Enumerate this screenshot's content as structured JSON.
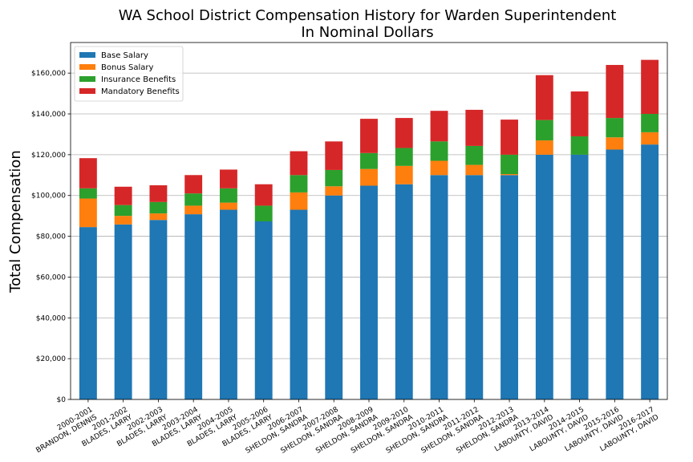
{
  "chart_data": {
    "type": "bar",
    "stacked": true,
    "title": "WA School District Compensation History for Warden Superintendent",
    "subtitle": "In Nominal Dollars",
    "xlabel": "",
    "ylabel": "Total Compensation",
    "ylim": [
      0,
      175000
    ],
    "yticks": [
      "$0",
      "$20,000",
      "$40,000",
      "$60,000",
      "$80,000",
      "$100,000",
      "$120,000",
      "$140,000",
      "$160,000"
    ],
    "ytick_values": [
      0,
      20000,
      40000,
      60000,
      80000,
      100000,
      120000,
      140000,
      160000
    ],
    "grid": true,
    "legend_position": "top-left",
    "categories": [
      [
        "2000-2001",
        "BRANDON, DENNIS"
      ],
      [
        "2001-2002",
        "BLADES, LARRY"
      ],
      [
        "2002-2003",
        "BLADES, LARRY"
      ],
      [
        "2003-2004",
        "BLADES, LARRY"
      ],
      [
        "2004-2005",
        "BLADES, LARRY"
      ],
      [
        "2005-2006",
        "BLADES, LARRY"
      ],
      [
        "2006-2007",
        "SHELDON, SANDRA"
      ],
      [
        "2007-2008",
        "SHELDON, SANDRA"
      ],
      [
        "2008-2009",
        "SHELDON, SANDRA"
      ],
      [
        "2009-2010",
        "SHELDON, SANDRA"
      ],
      [
        "2010-2011",
        "SHELDON, SANDRA"
      ],
      [
        "2011-2012",
        "SHELDON, SANDRA"
      ],
      [
        "2012-2013",
        "SHELDON, SANDRA"
      ],
      [
        "2013-2014",
        "LABOUNTY, DAVID"
      ],
      [
        "2014-2015",
        "LABOUNTY, DAVID"
      ],
      [
        "2015-2016",
        "LABOUNTY, DAVID"
      ],
      [
        "2016-2017",
        "LABOUNTY, DAVID"
      ]
    ],
    "series": [
      {
        "name": "Base Salary",
        "color": "#1f77b4",
        "values": [
          84500,
          85800,
          88000,
          90800,
          93000,
          87300,
          93000,
          100000,
          104800,
          105500,
          110000,
          110000,
          110000,
          120000,
          120000,
          122500,
          125000
        ]
      },
      {
        "name": "Bonus Salary",
        "color": "#ff7f0e",
        "values": [
          14000,
          4200,
          3200,
          4200,
          3500,
          0,
          8500,
          4500,
          8200,
          9000,
          7000,
          5000,
          500,
          7000,
          0,
          6000,
          6000
        ]
      },
      {
        "name": "Insurance Benefits",
        "color": "#2ca02c",
        "values": [
          5000,
          5300,
          5600,
          6000,
          7000,
          7700,
          8500,
          8000,
          7800,
          8800,
          9500,
          9300,
          9500,
          10000,
          9000,
          9500,
          9000
        ]
      },
      {
        "name": "Mandatory Benefits",
        "color": "#d62728",
        "values": [
          14800,
          9000,
          8200,
          9000,
          9200,
          10500,
          11700,
          14000,
          16800,
          14700,
          15000,
          17700,
          17200,
          22000,
          22000,
          26000,
          26500
        ]
      }
    ]
  }
}
